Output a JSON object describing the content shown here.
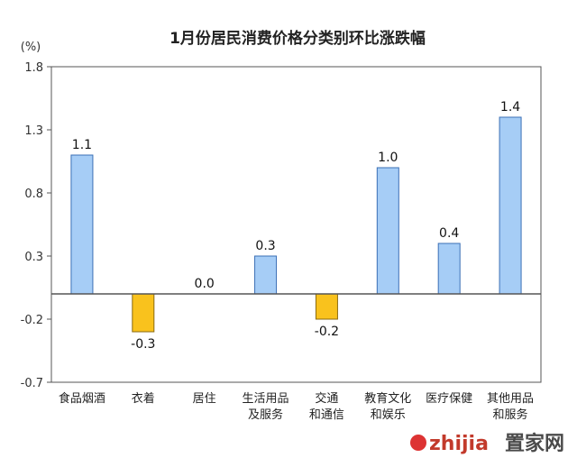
{
  "chart_data": {
    "type": "bar",
    "title": "1月份居民消费价格分类别环比涨跌幅",
    "unit_label": "(%)",
    "categories": [
      [
        "食品烟酒"
      ],
      [
        "衣着"
      ],
      [
        "居住"
      ],
      [
        "生活用品",
        "及服务"
      ],
      [
        "交通",
        "和通信"
      ],
      [
        "教育文化",
        "和娱乐"
      ],
      [
        "医疗保健"
      ],
      [
        "其他用品",
        "和服务"
      ]
    ],
    "values": [
      1.1,
      -0.3,
      0.0,
      0.3,
      -0.2,
      1.0,
      0.4,
      1.4
    ],
    "value_labels": [
      "1.1",
      "-0.3",
      "0.0",
      "0.3",
      "-0.2",
      "1.0",
      "0.4",
      "1.4"
    ],
    "yticks": [
      1.8,
      1.3,
      0.8,
      0.3,
      -0.2,
      -0.7
    ],
    "ytick_labels": [
      "1.8",
      "1.3",
      "0.8",
      "0.3",
      "-0.2",
      "-0.7"
    ],
    "ylim": [
      -0.7,
      1.8
    ],
    "grid": false,
    "colors": {
      "positive": "#a6cdf6",
      "positive_stroke": "#3b6fb6",
      "negative": "#f9c21d",
      "negative_stroke": "#8a6a10",
      "axis": "#555555"
    }
  },
  "watermark": {
    "latin": "zhijia",
    "chinese": "置家网"
  }
}
